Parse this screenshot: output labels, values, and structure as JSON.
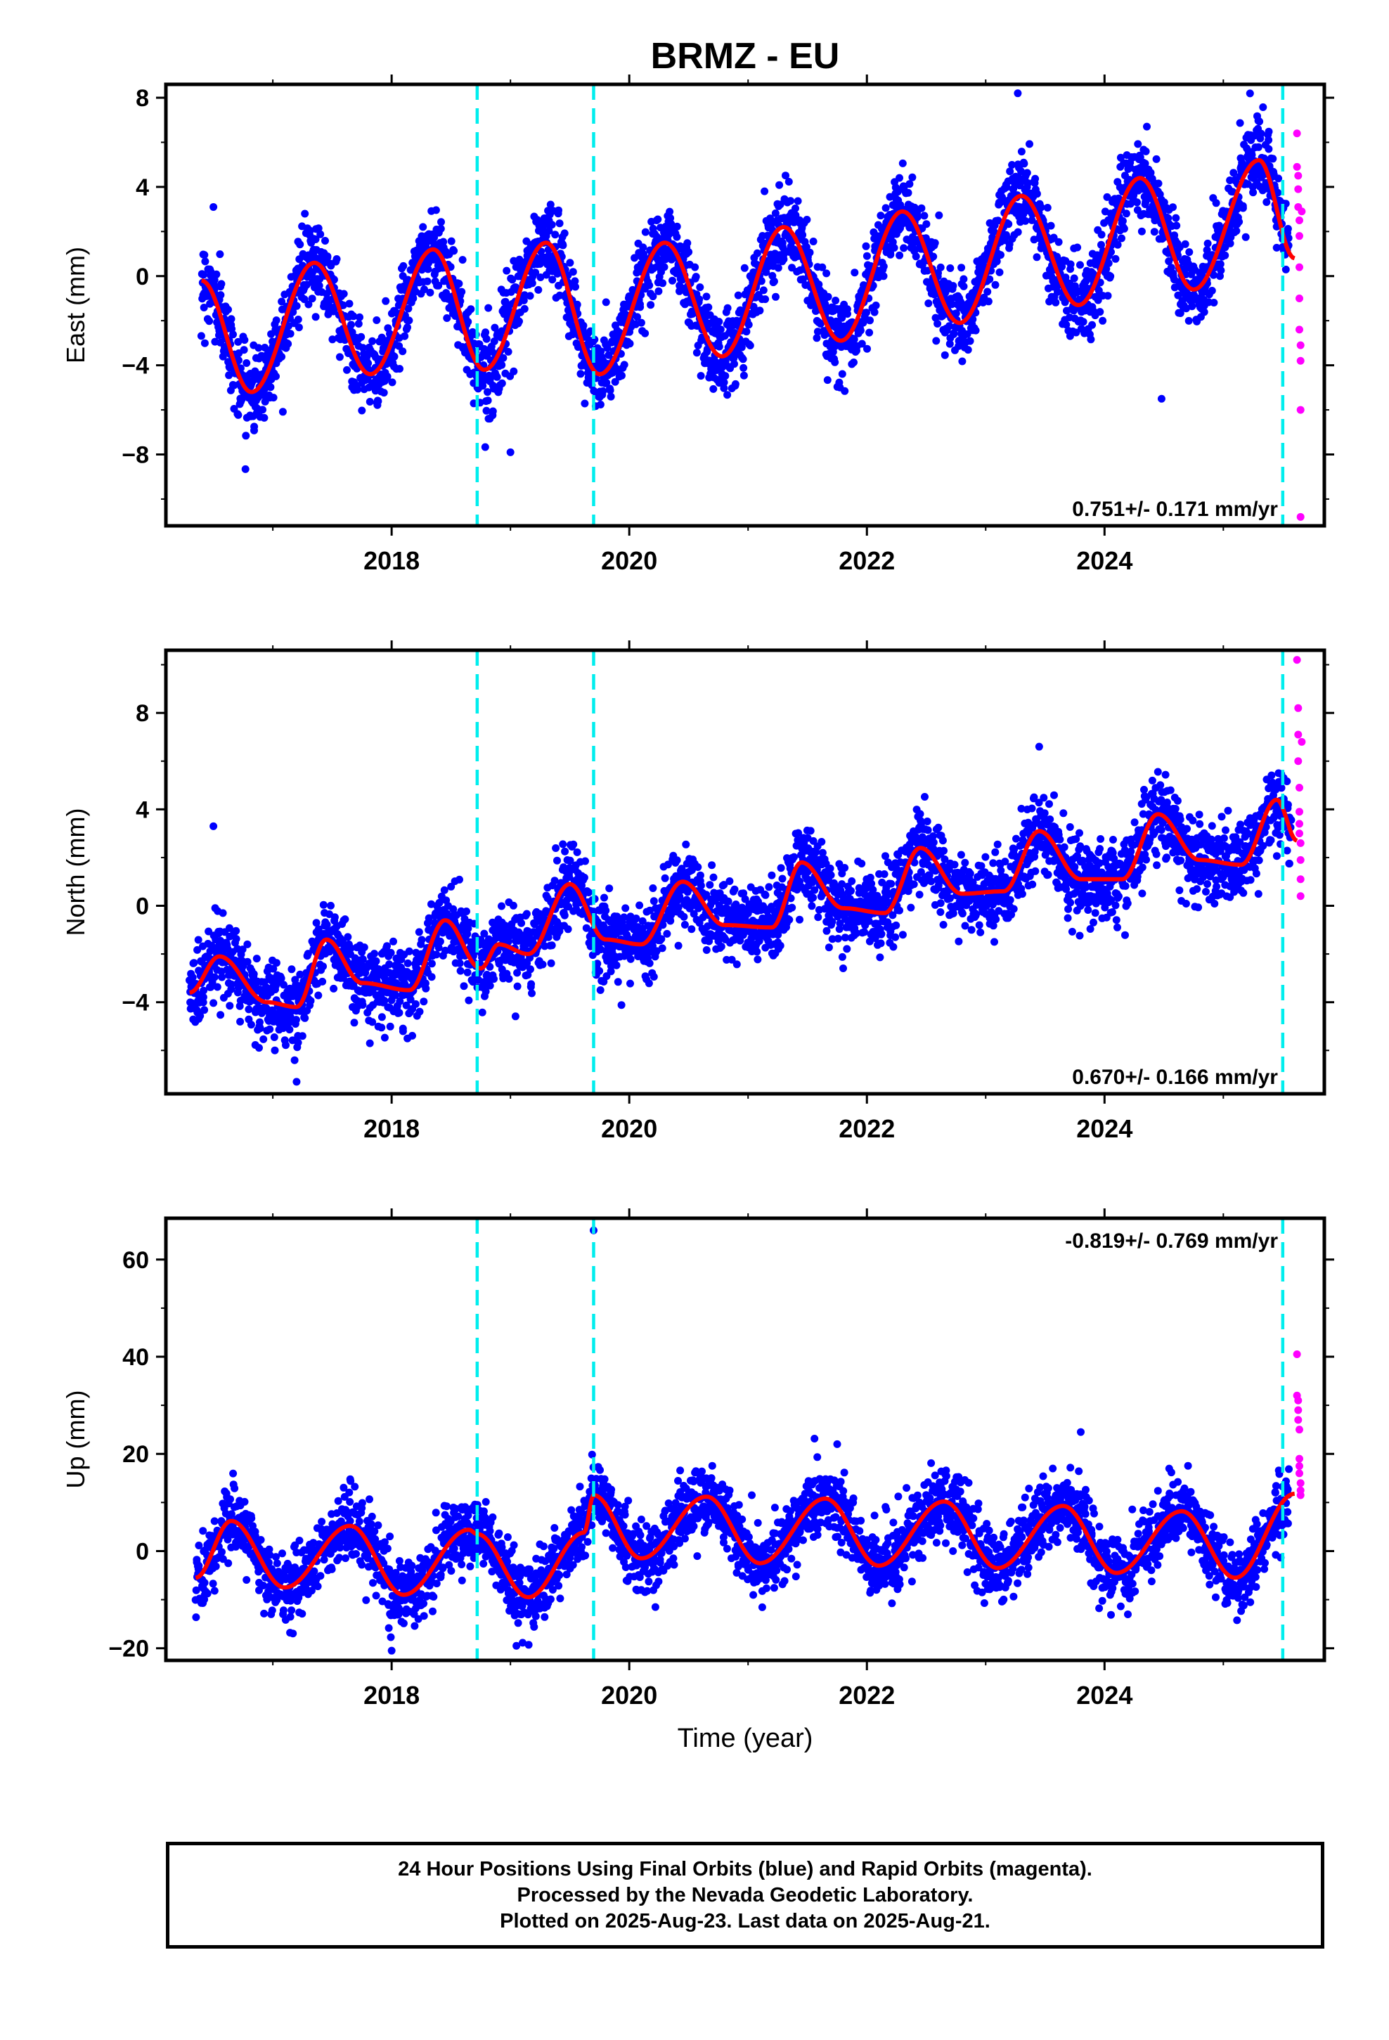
{
  "title": "BRMZ - EU",
  "xlabel": "Time (year)",
  "colors": {
    "final_orbits": "#0000ff",
    "rapid_orbits": "#ff00ff",
    "model_fit": "#ff0000",
    "equipment_change": "#00eeee",
    "frame": "#000000"
  },
  "caption": {
    "line1": "24 Hour Positions Using Final Orbits (blue) and Rapid Orbits (magenta).",
    "line2": "Processed by the Nevada Geodetic Laboratory.",
    "line3": "Plotted on 2025-Aug-23. Last data on 2025-Aug-21."
  },
  "chart_data": [
    {
      "type": "scatter",
      "component": "East",
      "ylabel": "East (mm)",
      "xlim": [
        2016.1,
        2025.85
      ],
      "ylim": [
        -11.2,
        8.6
      ],
      "xticks": [
        2018,
        2020,
        2022,
        2024
      ],
      "yticks": [
        -8,
        -4,
        0,
        4,
        8
      ],
      "xtick_labels": [
        "2018",
        "2020",
        "2022",
        "2024"
      ],
      "ytick_labels": [
        "−8",
        "−4",
        "0",
        "4",
        "8"
      ],
      "rate_label": "0.751+/- 0.171 mm/yr",
      "rate_position": "bottom-right",
      "breaks": [
        2018.72,
        2019.7,
        2025.5
      ],
      "fit": {
        "x": [
          2016.4,
          2016.82,
          2017.35,
          2017.82,
          2018.35,
          2018.78,
          2019.3,
          2019.75,
          2020.3,
          2020.78,
          2021.3,
          2021.78,
          2022.3,
          2022.78,
          2023.3,
          2023.78,
          2024.3,
          2024.75,
          2025.3,
          2025.6
        ],
        "y": [
          -0.2,
          -5.2,
          0.6,
          -4.4,
          1.2,
          -4.2,
          1.5,
          -4.4,
          1.5,
          -3.6,
          2.2,
          -2.9,
          2.9,
          -2.1,
          3.6,
          -1.3,
          4.4,
          -0.6,
          5.2,
          0.8
        ]
      },
      "final_orbits": {
        "count": 3200,
        "scatter_mm": 0.9
      },
      "rapid_orbits": {
        "x": [
          2025.62,
          2025.62,
          2025.63,
          2025.63,
          2025.63,
          2025.64,
          2025.64,
          2025.64,
          2025.64,
          2025.64,
          2025.65,
          2025.65,
          2025.65,
          2025.65,
          2025.66
        ],
        "y": [
          6.4,
          4.9,
          4.5,
          3.9,
          3.1,
          2.5,
          1.8,
          0.4,
          -1.0,
          -2.4,
          -3.1,
          -3.8,
          -6.0,
          -10.8,
          2.9
        ]
      },
      "outliers": {
        "x": [
          2024.48,
          2023.27,
          2019.0,
          2016.5
        ],
        "y": [
          -5.5,
          8.2,
          -7.9,
          3.1
        ]
      }
    },
    {
      "type": "scatter",
      "component": "North",
      "ylabel": "North (mm)",
      "xlim": [
        2016.1,
        2025.85
      ],
      "ylim": [
        -7.8,
        10.6
      ],
      "xticks": [
        2018,
        2020,
        2022,
        2024
      ],
      "yticks": [
        -4,
        0,
        4,
        8
      ],
      "xtick_labels": [
        "2018",
        "2020",
        "2022",
        "2024"
      ],
      "ytick_labels": [
        "−4",
        "0",
        "4",
        "8"
      ],
      "rate_label": "0.670+/- 0.166 mm/yr",
      "rate_position": "bottom-right",
      "breaks": [
        2018.72,
        2019.7,
        2025.5
      ],
      "fit": {
        "x": [
          2016.3,
          2016.55,
          2016.95,
          2017.2,
          2017.45,
          2017.75,
          2018.15,
          2018.45,
          2018.75,
          2018.9,
          2019.15,
          2019.5,
          2019.8,
          2020.1,
          2020.45,
          2020.8,
          2021.2,
          2021.45,
          2021.8,
          2022.15,
          2022.45,
          2022.8,
          2023.15,
          2023.45,
          2023.8,
          2024.15,
          2024.45,
          2024.8,
          2025.15,
          2025.45,
          2025.62
        ],
        "y": [
          -3.6,
          -2.1,
          -4.0,
          -4.2,
          -1.4,
          -3.2,
          -3.5,
          -0.6,
          -2.6,
          -1.6,
          -2.0,
          0.9,
          -1.4,
          -1.6,
          1.0,
          -0.8,
          -0.9,
          1.8,
          -0.1,
          -0.3,
          2.4,
          0.5,
          0.6,
          3.1,
          1.1,
          1.1,
          3.8,
          1.9,
          1.7,
          4.4,
          2.7
        ]
      },
      "final_orbits": {
        "count": 3200,
        "scatter_mm": 0.8
      },
      "rapid_orbits": {
        "x": [
          2025.62,
          2025.63,
          2025.63,
          2025.63,
          2025.64,
          2025.64,
          2025.64,
          2025.64,
          2025.65,
          2025.65,
          2025.65,
          2025.65,
          2025.66
        ],
        "y": [
          10.2,
          8.2,
          7.1,
          6.0,
          4.9,
          3.9,
          3.4,
          3.0,
          2.6,
          1.9,
          1.1,
          0.4,
          6.8
        ]
      },
      "outliers": {
        "x": [
          2016.5,
          2023.45,
          2017.2
        ],
        "y": [
          3.3,
          6.6,
          -7.3
        ]
      }
    },
    {
      "type": "scatter",
      "component": "Up",
      "ylabel": "Up (mm)",
      "xlim": [
        2016.1,
        2025.85
      ],
      "ylim": [
        -22.5,
        68.5
      ],
      "xticks": [
        2018,
        2020,
        2022,
        2024
      ],
      "yticks": [
        -20,
        0,
        20,
        40,
        60
      ],
      "xtick_labels": [
        "2018",
        "2020",
        "2022",
        "2024"
      ],
      "ytick_labels": [
        "−20",
        "0",
        "20",
        "40",
        "60"
      ],
      "rate_label": "-0.819+/- 0.769 mm/yr",
      "rate_position": "top-right",
      "breaks": [
        2018.72,
        2019.7,
        2025.5
      ],
      "fit": {
        "x": [
          2016.35,
          2016.65,
          2017.1,
          2017.65,
          2018.1,
          2018.65,
          2018.72,
          2019.15,
          2019.62,
          2019.7,
          2020.1,
          2020.65,
          2021.1,
          2021.65,
          2022.1,
          2022.65,
          2023.1,
          2023.65,
          2024.1,
          2024.65,
          2025.1,
          2025.6
        ],
        "y": [
          -5.5,
          6.2,
          -7.5,
          5.2,
          -9.0,
          4.4,
          3.5,
          -9.5,
          3.8,
          11.5,
          -1.5,
          11.2,
          -2.5,
          10.8,
          -3.0,
          10.2,
          -3.5,
          9.3,
          -4.5,
          8.2,
          -5.5,
          11.8
        ]
      },
      "final_orbits": {
        "count": 3200,
        "scatter_mm": 3.5
      },
      "rapid_orbits": {
        "x": [
          2025.62,
          2025.62,
          2025.63,
          2025.63,
          2025.63,
          2025.64,
          2025.64,
          2025.64,
          2025.64,
          2025.65,
          2025.65,
          2025.65
        ],
        "y": [
          40.5,
          32.0,
          31.0,
          29.0,
          27.0,
          25.0,
          19.0,
          17.5,
          16.0,
          14.0,
          12.5,
          11.5
        ]
      },
      "outliers": {
        "x": [
          2019.7,
          2018.0,
          2019.05,
          2021.75,
          2023.8
        ],
        "y": [
          66.0,
          -20.5,
          -19.5,
          22.0,
          24.5
        ]
      }
    }
  ]
}
